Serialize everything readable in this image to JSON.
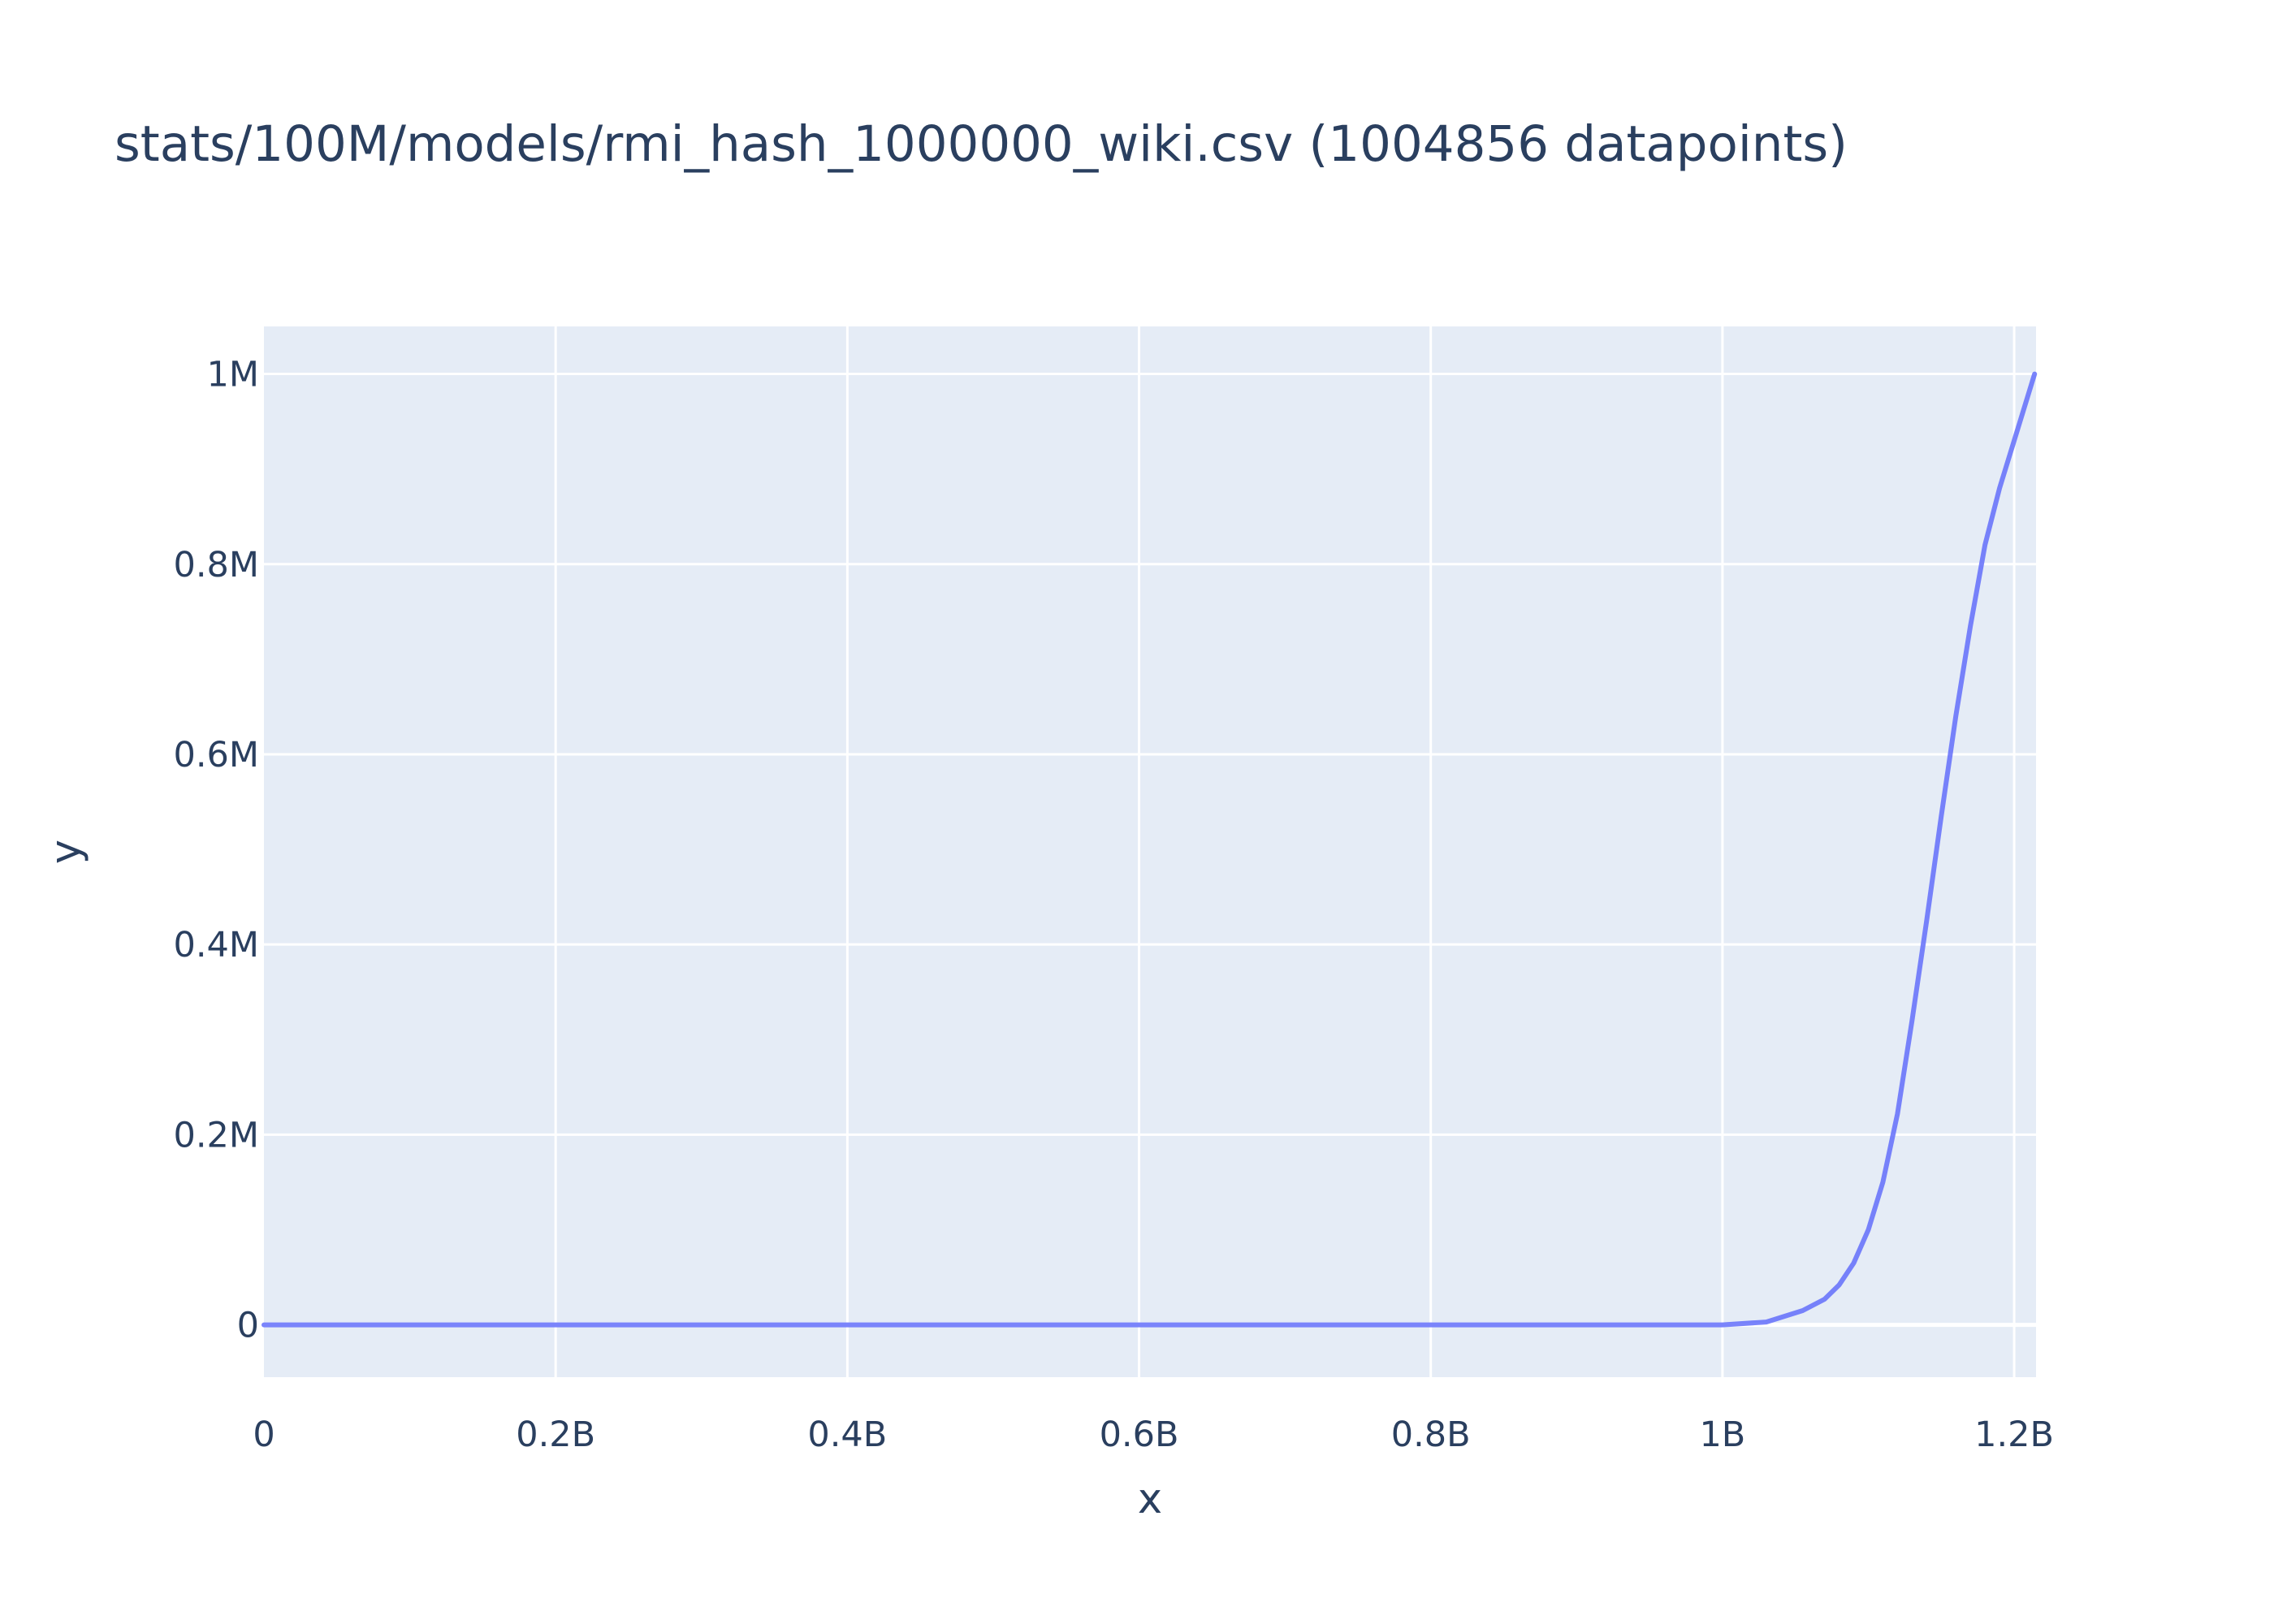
{
  "chart_data": {
    "type": "line",
    "title": "stats/100M/models/rmi_hash_1000000_wiki.csv (1004856 datapoints)",
    "xlabel": "x",
    "ylabel": "y",
    "xlim": [
      0,
      1215000000
    ],
    "ylim": [
      -55000,
      1050000
    ],
    "x_ticks": [
      {
        "value": 0,
        "label": "0"
      },
      {
        "value": 200000000,
        "label": "0.2B"
      },
      {
        "value": 400000000,
        "label": "0.4B"
      },
      {
        "value": 600000000,
        "label": "0.6B"
      },
      {
        "value": 800000000,
        "label": "0.8B"
      },
      {
        "value": 1000000000,
        "label": "1B"
      },
      {
        "value": 1200000000,
        "label": "1.2B"
      }
    ],
    "y_ticks": [
      {
        "value": 0,
        "label": "0"
      },
      {
        "value": 200000,
        "label": "0.2M"
      },
      {
        "value": 400000,
        "label": "0.4M"
      },
      {
        "value": 600000,
        "label": "0.6M"
      },
      {
        "value": 800000,
        "label": "0.8M"
      },
      {
        "value": 1000000,
        "label": "1M"
      }
    ],
    "grid": true,
    "colors": {
      "plot_bg": "#e5ecf6",
      "grid": "#ffffff",
      "line": "#636efa",
      "text": "#2a3f5f"
    },
    "series": [
      {
        "x": [
          0,
          100000000,
          200000000,
          300000000,
          400000000,
          500000000,
          600000000,
          700000000,
          800000000,
          900000000,
          1000000000,
          1030000000,
          1055000000,
          1070000000,
          1080000000,
          1090000000,
          1100000000,
          1110000000,
          1120000000,
          1130000000,
          1140000000,
          1150000000,
          1160000000,
          1170000000,
          1180000000,
          1190000000,
          1200000000,
          1214000000
        ],
        "y": [
          0,
          0,
          0,
          0,
          0,
          0,
          0,
          0,
          0,
          0,
          0,
          3000,
          15000,
          27000,
          42000,
          65000,
          100000,
          150000,
          222000,
          320000,
          425000,
          535000,
          640000,
          735000,
          820000,
          880000,
          930000,
          1000000
        ]
      }
    ]
  }
}
